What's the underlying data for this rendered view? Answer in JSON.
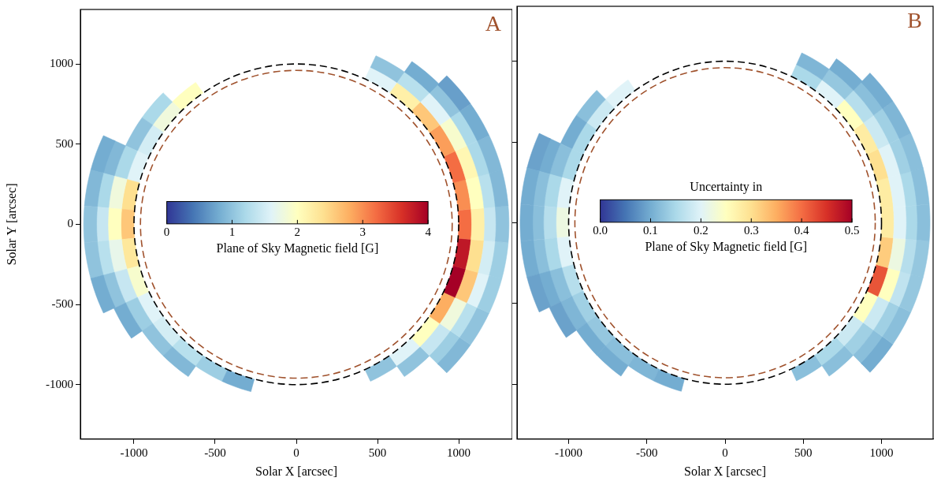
{
  "chart_data": [
    {
      "type": "scatter",
      "title": "A",
      "xlabel": "Solar X [arcsec]",
      "ylabel": "Solar Y [arcsec]",
      "xlim": [
        -1330,
        1330
      ],
      "ylim": [
        -1340,
        1340
      ],
      "xticks": [
        -1000,
        -500,
        0,
        500,
        1000
      ],
      "yticks": [
        -1000,
        -500,
        0,
        500,
        1000
      ],
      "grid": false,
      "tick_labels": true,
      "x": [
        -669,
        -797,
        -858,
        -901,
        -970,
        -978,
        -1053,
        -1128,
        -1194,
        -1024,
        -1103,
        -1182,
        -1251,
        -1040,
        -1120,
        -1200,
        -1270,
        -1024,
        -1103,
        -1182,
        -1251,
        -978,
        -1053,
        -1128,
        -1194,
        -901,
        -970,
        -1039,
        -797,
        -858,
        -669,
        -720,
        -520,
        -356,
        520,
        669,
        720,
        797,
        858,
        919,
        973,
        901,
        970,
        1039,
        1100,
        978,
        1053,
        1128,
        1194,
        1024,
        1103,
        1182,
        1251,
        1040,
        1120,
        1200,
        1270,
        1024,
        1103,
        1182,
        1251,
        978,
        1053,
        1128,
        1194,
        901,
        970,
        1039,
        1100,
        797,
        858,
        919,
        973,
        669,
        720,
        772,
        520,
        560
      ],
      "y": [
        797,
        669,
        720,
        520,
        560,
        356,
        383,
        410,
        434,
        181,
        195,
        209,
        221,
        0,
        0,
        0,
        0,
        -181,
        -195,
        -209,
        -221,
        -356,
        -383,
        -410,
        -434,
        -520,
        -560,
        -600,
        -669,
        -720,
        -797,
        -858,
        -901,
        -978,
        -901,
        -797,
        -858,
        -669,
        -720,
        -772,
        -817,
        -520,
        -560,
        -600,
        -635,
        -356,
        -383,
        -410,
        -434,
        -181,
        -195,
        -209,
        -221,
        0,
        0,
        0,
        0,
        181,
        195,
        209,
        221,
        356,
        383,
        410,
        434,
        520,
        560,
        600,
        635,
        669,
        720,
        772,
        817,
        797,
        858,
        919,
        901,
        970
      ],
      "values": [
        2.0,
        1.8,
        1.2,
        1.5,
        1.0,
        1.6,
        1.2,
        0.9,
        0.8,
        2.4,
        1.8,
        1.2,
        0.9,
        2.6,
        2.0,
        1.4,
        1.0,
        2.3,
        1.7,
        1.3,
        1.0,
        1.9,
        1.4,
        1.0,
        0.8,
        1.6,
        1.1,
        0.8,
        1.5,
        1.0,
        1.3,
        0.9,
        1.1,
        0.8,
        1.0,
        1.6,
        1.0,
        2.0,
        1.4,
        1.1,
        0.9,
        2.8,
        1.8,
        1.3,
        1.0,
        4.5,
        2.6,
        1.6,
        1.1,
        3.8,
        2.4,
        1.5,
        1.1,
        3.2,
        2.2,
        1.4,
        1.0,
        3.0,
        2.0,
        1.3,
        0.9,
        3.2,
        2.1,
        1.2,
        0.9,
        2.9,
        1.9,
        1.2,
        0.8,
        2.6,
        1.6,
        1.0,
        0.7,
        2.2,
        1.3,
        0.8,
        1.6,
        1.0
      ],
      "colorbar": {
        "range": [
          0,
          4
        ],
        "ticks": [
          0,
          1,
          2,
          3,
          4
        ],
        "label": "Plane of Sky Magnetic field [G]",
        "colors": [
          "#313695",
          "#4575b4",
          "#74add1",
          "#abd9e9",
          "#e0f3f8",
          "#ffffbf",
          "#fee090",
          "#fdae61",
          "#f46d43",
          "#d73027",
          "#a50026"
        ]
      },
      "circles": [
        {
          "radius": 1000,
          "color": "#000000",
          "line_style": "dashed"
        },
        {
          "radius": 960,
          "color": "#a0522d",
          "line_style": "dashed"
        }
      ]
    },
    {
      "type": "scatter",
      "title": "B",
      "xlabel": "Solar X [arcsec]",
      "xlim": [
        -1330,
        1330
      ],
      "ylim": [
        -1340,
        1340
      ],
      "xticks": [
        -1000,
        -500,
        0,
        500,
        1000
      ],
      "yticks": [
        -1000,
        -500,
        0,
        500,
        1000
      ],
      "grid": false,
      "tick_labels": "x",
      "x": [
        -669,
        -797,
        -858,
        -901,
        -970,
        -978,
        -1053,
        -1128,
        -1194,
        -1024,
        -1103,
        -1182,
        -1251,
        -1040,
        -1120,
        -1200,
        -1270,
        -1024,
        -1103,
        -1182,
        -1251,
        -978,
        -1053,
        -1128,
        -1194,
        -901,
        -970,
        -1039,
        -797,
        -858,
        -669,
        -720,
        -520,
        -356,
        520,
        669,
        720,
        797,
        858,
        919,
        973,
        901,
        970,
        1039,
        1100,
        978,
        1053,
        1128,
        1194,
        1024,
        1103,
        1182,
        1251,
        1040,
        1120,
        1200,
        1270,
        1024,
        1103,
        1182,
        1251,
        978,
        1053,
        1128,
        1194,
        901,
        970,
        1039,
        1100,
        797,
        858,
        919,
        973,
        669,
        720,
        772,
        520,
        560
      ],
      "y": [
        797,
        669,
        720,
        520,
        560,
        356,
        383,
        410,
        434,
        181,
        195,
        209,
        221,
        0,
        0,
        0,
        0,
        -181,
        -195,
        -209,
        -221,
        -356,
        -383,
        -410,
        -434,
        -520,
        -560,
        -600,
        -669,
        -720,
        -797,
        -858,
        -901,
        -978,
        -901,
        -797,
        -858,
        -669,
        -720,
        -772,
        -817,
        -520,
        -560,
        -600,
        -635,
        -356,
        -383,
        -410,
        -434,
        -181,
        -195,
        -209,
        -221,
        0,
        0,
        0,
        0,
        181,
        195,
        209,
        221,
        356,
        383,
        410,
        434,
        520,
        560,
        600,
        635,
        669,
        720,
        772,
        817,
        797,
        858,
        919,
        901,
        970
      ],
      "values": [
        0.2,
        0.18,
        0.12,
        0.15,
        0.1,
        0.15,
        0.12,
        0.1,
        0.09,
        0.2,
        0.15,
        0.12,
        0.1,
        0.22,
        0.16,
        0.12,
        0.1,
        0.2,
        0.15,
        0.12,
        0.1,
        0.16,
        0.12,
        0.1,
        0.09,
        0.14,
        0.11,
        0.09,
        0.13,
        0.1,
        0.12,
        0.1,
        0.11,
        0.1,
        0.12,
        0.15,
        0.12,
        0.18,
        0.14,
        0.12,
        0.1,
        0.25,
        0.18,
        0.14,
        0.12,
        0.42,
        0.25,
        0.17,
        0.13,
        0.32,
        0.22,
        0.16,
        0.13,
        0.28,
        0.2,
        0.15,
        0.12,
        0.28,
        0.2,
        0.15,
        0.12,
        0.3,
        0.2,
        0.14,
        0.12,
        0.28,
        0.18,
        0.14,
        0.11,
        0.25,
        0.16,
        0.12,
        0.1,
        0.2,
        0.13,
        0.1,
        0.15,
        0.11
      ],
      "colorbar": {
        "range": [
          0,
          0.5
        ],
        "ticks": [
          {
            "value": 0,
            "label": "0.0"
          },
          0.1,
          0.2,
          0.3,
          0.4,
          0.5
        ],
        "title": "Uncertainty in",
        "label": "Plane of Sky Magnetic field [G]",
        "colors": [
          "#313695",
          "#4575b4",
          "#74add1",
          "#abd9e9",
          "#e0f3f8",
          "#ffffbf",
          "#fee090",
          "#fdae61",
          "#f46d43",
          "#d73027",
          "#a50026"
        ]
      },
      "circles": [
        {
          "radius": 1000,
          "color": "#000000",
          "line_style": "dashed"
        },
        {
          "radius": 960,
          "color": "#a0522d",
          "line_style": "dashed"
        }
      ]
    }
  ]
}
